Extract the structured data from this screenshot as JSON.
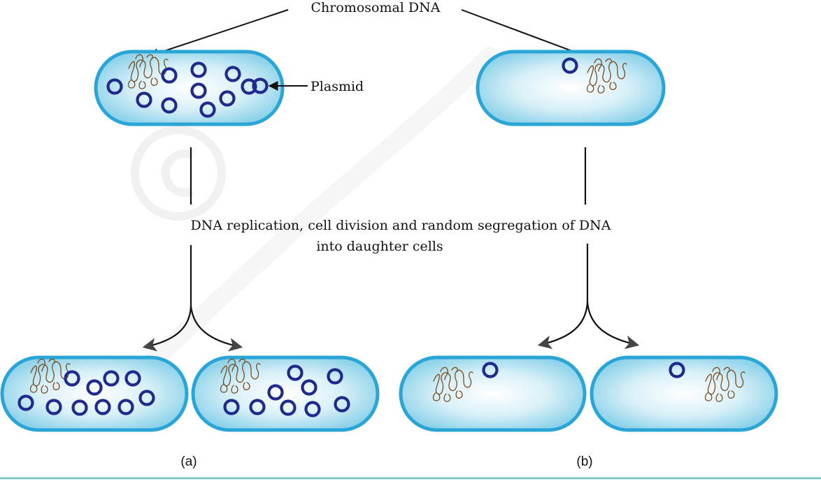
{
  "labels": {
    "chromosomal_dna": "Chromosomal DNA",
    "plasmid": "Plasmid",
    "process_line1": "DNA replication, cell division and random segregation of DNA",
    "process_line2": "into daughter cells",
    "panel_a": "(a)",
    "panel_b": "(b)"
  },
  "cells": {
    "parent_a": {
      "plasmid_count": 11
    },
    "parent_b": {
      "plasmid_count": 1
    },
    "daughter_a1": {
      "plasmid_count": 10
    },
    "daughter_a2": {
      "plasmid_count": 9
    },
    "daughter_b1": {
      "plasmid_count": 1
    },
    "daughter_b2": {
      "plasmid_count": 1
    }
  },
  "colors": {
    "cell_border": "#2aa5d8",
    "cell_fill_center": "#ffffff",
    "cell_fill_edge": "#8fd3ea",
    "plasmid": "#1f2a8c",
    "chromosomal_dna": "#7a4a1e",
    "divider": "#7fc4c4",
    "watermark": "#e4e4e4"
  }
}
